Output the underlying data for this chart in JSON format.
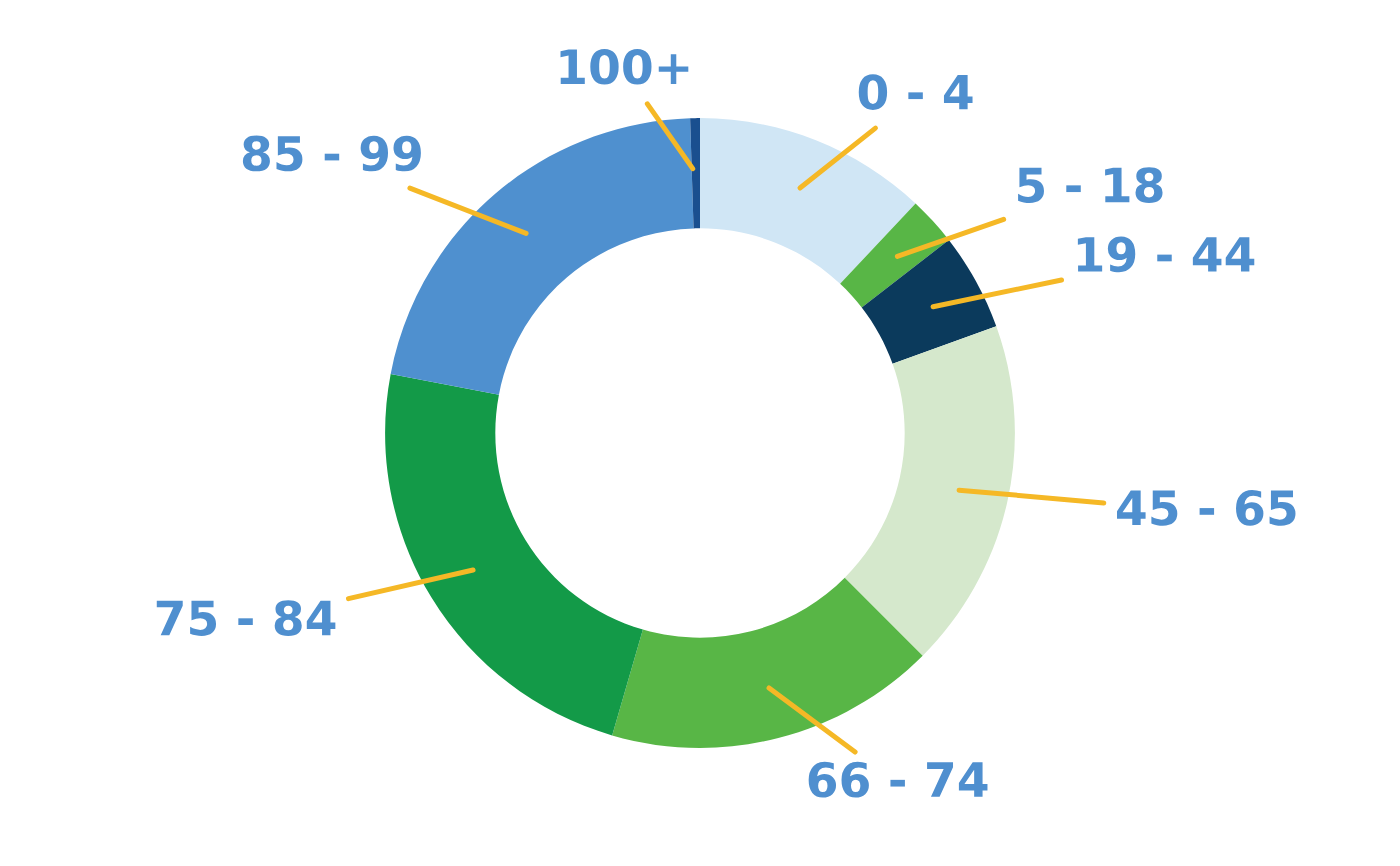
{
  "chart_data": {
    "type": "donut",
    "categories": [
      "0 - 4",
      "5 - 18",
      "19 - 44",
      "45 - 65",
      "66 - 74",
      "75 - 84",
      "85 - 99",
      "100+"
    ],
    "values": [
      12,
      2.5,
      5,
      18,
      17,
      23.5,
      21.5,
      0.5
    ],
    "colors": [
      "#d0e6f5",
      "#58b646",
      "#0b3a5c",
      "#d5e8cc",
      "#58b646",
      "#139a48",
      "#4f90cf",
      "#1a4f8f"
    ]
  }
}
